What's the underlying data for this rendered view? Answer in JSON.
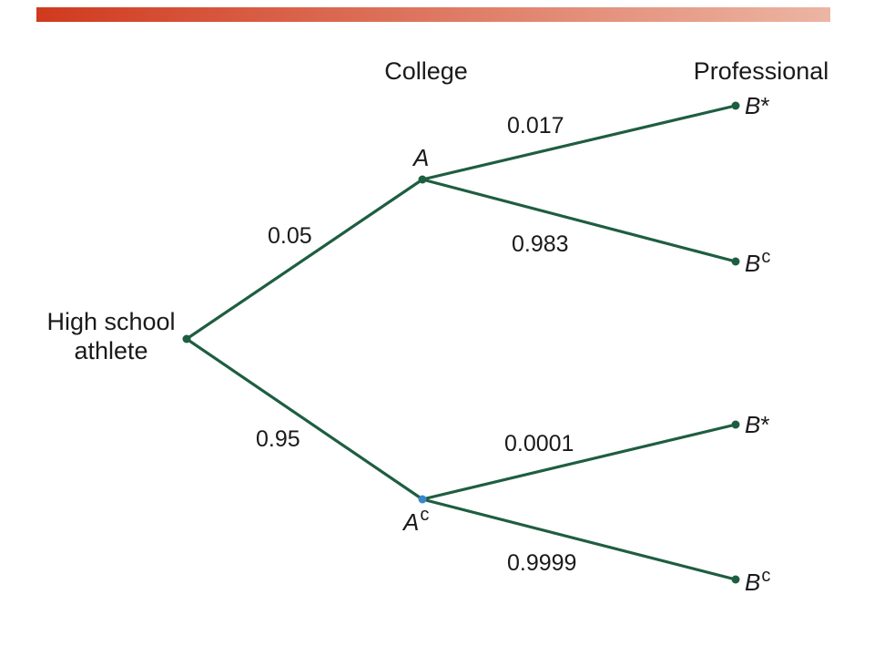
{
  "colors": {
    "bar_start": "#d03a1e",
    "bar_end": "#ecb5a3",
    "edge": "#1e5e40",
    "node": "#1e5e40",
    "node_ac": "#3b86c9"
  },
  "headers": {
    "college": "College",
    "professional": "Professional"
  },
  "root": {
    "line1": "High school",
    "line2": "athlete"
  },
  "nodes": {
    "a": {
      "letter": "A",
      "sup": ""
    },
    "ac": {
      "letter": "A",
      "sup": "c"
    }
  },
  "leaves": [
    {
      "letter": "B",
      "sup": "*"
    },
    {
      "letter": "B",
      "sup": "c"
    },
    {
      "letter": "B",
      "sup": "*"
    },
    {
      "letter": "B",
      "sup": "c"
    }
  ],
  "probabilities": {
    "root_to_a": "0.05",
    "root_to_ac": "0.95",
    "a_to_b1": "0.017",
    "a_to_b2": "0.983",
    "ac_to_b3": "0.0001",
    "ac_to_b4": "0.9999"
  }
}
